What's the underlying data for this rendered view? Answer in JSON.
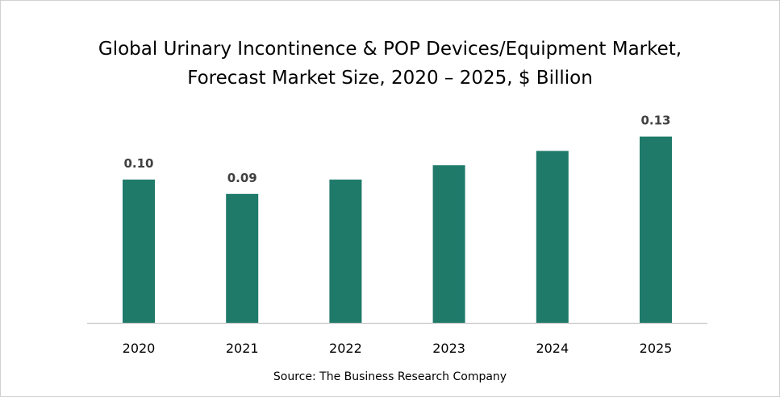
{
  "chart_data": {
    "type": "bar",
    "title": [
      "Global Urinary Incontinence & POP Devices/Equipment Market,",
      "Forecast Market Size, 2020 – 2025, $ Billion"
    ],
    "categories": [
      "2020",
      "2021",
      "2022",
      "2023",
      "2024",
      "2025"
    ],
    "values": [
      0.1,
      0.09,
      0.1,
      0.11,
      0.12,
      0.13
    ],
    "data_labels": [
      "0.10",
      "0.09",
      null,
      null,
      null,
      "0.13"
    ],
    "xlabel": "",
    "ylabel": "",
    "ylim": [
      0,
      0.13
    ],
    "grid": false,
    "legend": "none",
    "bar_color": "#1F7A6A",
    "label_color": "#404040",
    "source": "Source: The Business Research Company"
  }
}
